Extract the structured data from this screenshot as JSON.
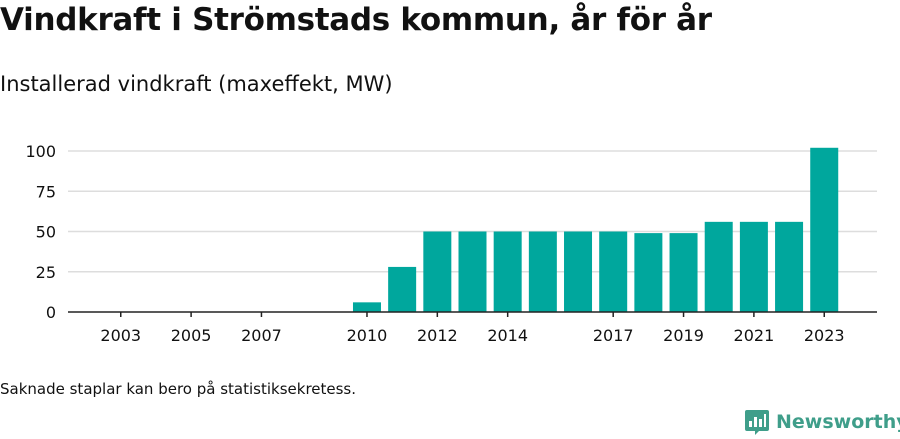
{
  "header": {
    "title": "Vindkraft i Strömstads kommun, år för år",
    "subtitle": "Installerad vindkraft (maxeffekt, MW)"
  },
  "footer": {
    "note": "Saknade staplar kan bero på statistiksekretess.",
    "brand": "Newsworthy"
  },
  "colors": {
    "bar": "#00a79d",
    "grid": "#dddddd",
    "axis": "#222222",
    "text": "#111111",
    "brand": "#3f9e8a"
  },
  "icons": {
    "brand_logo": "newsworthy-chart-icon"
  },
  "chart_data": {
    "type": "bar",
    "title": "Vindkraft i Strömstads kommun, år för år",
    "subtitle": "Installerad vindkraft (maxeffekt, MW)",
    "xlabel": "",
    "ylabel": "",
    "categories": [
      "2003",
      "2004",
      "2005",
      "2006",
      "2007",
      "2008",
      "2009",
      "2010",
      "2011",
      "2012",
      "2013",
      "2014",
      "2015",
      "2016",
      "2017",
      "2018",
      "2019",
      "2020",
      "2021",
      "2022",
      "2023"
    ],
    "values": [
      0,
      0,
      0,
      0,
      0,
      0,
      0,
      6,
      28,
      50,
      50,
      50,
      50,
      50,
      50,
      49,
      49,
      56,
      56,
      56,
      102
    ],
    "x_tick_labels": [
      "2003",
      "2005",
      "2007",
      "2010",
      "2012",
      "2014",
      "2017",
      "2019",
      "2021",
      "2023"
    ],
    "y_ticks": [
      0,
      25,
      50,
      75,
      100
    ],
    "ylim": [
      0,
      112
    ],
    "grid": true,
    "legend": "none"
  }
}
